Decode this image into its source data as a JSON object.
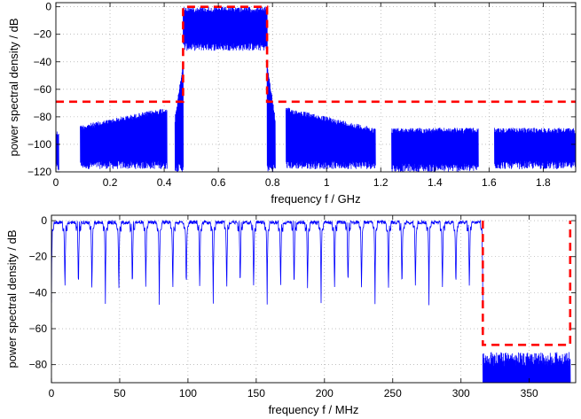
{
  "chart_data": [
    {
      "type": "line",
      "xlabel": "frequency f / GHz",
      "ylabel": "power spectral density / dB",
      "xlim": [
        0,
        1.92
      ],
      "ylim": [
        -120,
        3
      ],
      "xticks": [
        0,
        0.2,
        0.4,
        0.6,
        0.8,
        1,
        1.2,
        1.4,
        1.6,
        1.8
      ],
      "xtick_labels": [
        "0",
        "0.2",
        "0.4",
        "0.6",
        "0.8",
        "1",
        "1.2",
        "1.4",
        "1.6",
        "1.8"
      ],
      "yticks": [
        -120,
        -100,
        -80,
        -60,
        -40,
        -20,
        0
      ],
      "ytick_labels": [
        "−120",
        "−100",
        "−80",
        "−60",
        "−40",
        "−20",
        "0"
      ],
      "grid": true,
      "series": [
        {
          "color": "#0000ff",
          "style": "solid",
          "segments": [
            {
              "x_range": [
                0.0,
                0.01
              ],
              "baseline": -120,
              "top": -90
            },
            {
              "x_range": [
                0.09,
                0.41
              ],
              "baseline": -118,
              "top": -86,
              "top_end": -73
            },
            {
              "x_range": [
                0.44,
                0.47
              ],
              "baseline": -120,
              "top": -80,
              "top_end": -40
            },
            {
              "x_range": [
                0.47,
                0.78
              ],
              "baseline": -32,
              "top": 0
            },
            {
              "x_range": [
                0.78,
                0.81
              ],
              "baseline": -120,
              "top": -40,
              "top_end": -80
            },
            {
              "x_range": [
                0.85,
                1.18
              ],
              "baseline": -118,
              "top": -73,
              "top_end": -88
            },
            {
              "x_range": [
                1.24,
                1.56
              ],
              "baseline": -120,
              "top": -88
            },
            {
              "x_range": [
                1.62,
                1.92
              ],
              "baseline": -118,
              "top": -88
            }
          ]
        },
        {
          "color": "#ff0000",
          "style": "dashed",
          "points": [
            [
              0,
              -69
            ],
            [
              0.47,
              -69
            ],
            [
              0.47,
              0
            ],
            [
              0.78,
              0
            ],
            [
              0.78,
              -69
            ],
            [
              1.92,
              -69
            ]
          ]
        }
      ]
    },
    {
      "type": "line",
      "xlabel": "frequency f / MHz",
      "ylabel": "power spectral density / dB",
      "xlim": [
        0,
        384
      ],
      "ylim": [
        -90,
        3
      ],
      "xticks": [
        0,
        50,
        100,
        150,
        200,
        250,
        300,
        350
      ],
      "xtick_labels": [
        "0",
        "50",
        "100",
        "150",
        "200",
        "250",
        "300",
        "350"
      ],
      "yticks": [
        -80,
        -60,
        -40,
        -20,
        0
      ],
      "ytick_labels": [
        "−80",
        "−60",
        "−40",
        "−20",
        "0"
      ],
      "grid": true,
      "series": [
        {
          "color": "#0000ff",
          "style": "solid",
          "lobe_count": 32,
          "lobe_x_range": [
            0,
            316
          ],
          "lobe_top": 0,
          "lobe_null": -45,
          "stopband": {
            "x_range": [
              316,
              380
            ],
            "baseline": -90,
            "top": -73
          }
        },
        {
          "color": "#ff0000",
          "style": "dashed",
          "points": [
            [
              316,
              0
            ],
            [
              316,
              -69
            ],
            [
              380,
              -69
            ],
            [
              380,
              0
            ]
          ]
        }
      ]
    }
  ]
}
